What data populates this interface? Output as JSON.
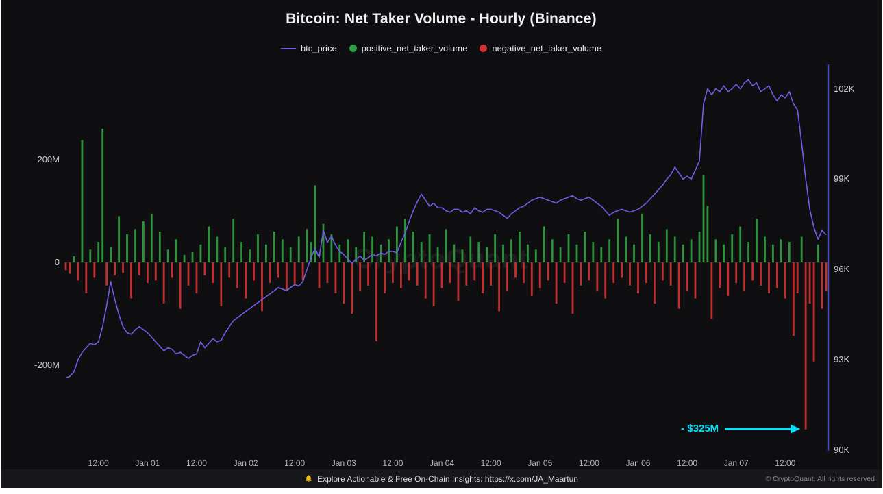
{
  "title": "Bitcoin: Net Taker Volume - Hourly (Binance)",
  "watermark": "CryptoQuant",
  "legend": [
    {
      "label": "btc_price",
      "marker": "line",
      "color": "#6e5fe6"
    },
    {
      "label": "positive_net_taker_volume",
      "marker": "dot",
      "color": "#2ea043"
    },
    {
      "label": "negative_net_taker_volume",
      "marker": "dot",
      "color": "#d63131"
    }
  ],
  "annotation": {
    "label": "- $325M",
    "color": "#00e5ff",
    "points_to_hour": 181,
    "value_m": -325
  },
  "footer": {
    "center": "Explore Actionable & Free On-Chain Insights: https://x.com/JA_Maartun",
    "right": "© CryptoQuant. All rights reserved",
    "bell_color": "#f0b90b"
  },
  "chart_data": {
    "type": "bar+line",
    "title": "Bitcoin: Net Taker Volume - Hourly (Binance)",
    "x_start": "Dec 31 04:00",
    "x_interval": "1 hour",
    "x_tick_labels": [
      "12:00",
      "Jan 01",
      "12:00",
      "Jan 02",
      "12:00",
      "Jan 03",
      "12:00",
      "Jan 04",
      "12:00",
      "Jan 05",
      "12:00",
      "Jan 06",
      "12:00",
      "Jan 07",
      "12:00"
    ],
    "x_tick_hours": [
      8,
      20,
      32,
      44,
      56,
      68,
      80,
      92,
      104,
      116,
      128,
      140,
      152,
      164,
      176
    ],
    "volume_axis": {
      "side": "left",
      "unit": "M USD",
      "ticks": [
        {
          "label": "200M",
          "value": 200
        },
        {
          "label": "0",
          "value": 0
        },
        {
          "label": "-200M",
          "value": -200
        }
      ]
    },
    "price_axis": {
      "side": "right",
      "unit": "K USD",
      "ticks": [
        {
          "label": "102K",
          "value": 102
        },
        {
          "label": "99K",
          "value": 99
        },
        {
          "label": "96K",
          "value": 96
        },
        {
          "label": "93K",
          "value": 93
        },
        {
          "label": "90K",
          "value": 90
        }
      ]
    },
    "colors": {
      "price_line": "#6e5fe6",
      "positive": "#2b9438",
      "negative": "#c22f2f",
      "right_axis_line": "#4d4dc0",
      "zero_line": "#26262c"
    },
    "series": {
      "net_taker_volume_m": [
        -15,
        -22,
        12,
        -35,
        238,
        -60,
        25,
        -30,
        40,
        260,
        -45,
        30,
        -25,
        90,
        -20,
        55,
        -70,
        65,
        -25,
        80,
        -40,
        95,
        -35,
        60,
        -80,
        25,
        -30,
        45,
        -90,
        15,
        -45,
        20,
        -60,
        35,
        -25,
        70,
        -40,
        50,
        -85,
        30,
        -30,
        85,
        -50,
        40,
        -70,
        25,
        -35,
        55,
        -95,
        35,
        -40,
        60,
        -30,
        45,
        -55,
        30,
        -45,
        50,
        -35,
        65,
        40,
        150,
        -50,
        75,
        -40,
        55,
        -60,
        35,
        -80,
        45,
        -100,
        30,
        -55,
        60,
        -45,
        50,
        -153,
        35,
        -60,
        45,
        -40,
        70,
        -50,
        85,
        -35,
        60,
        -45,
        40,
        -70,
        55,
        -85,
        30,
        -50,
        65,
        -40,
        35,
        -75,
        25,
        -45,
        50,
        -35,
        40,
        -60,
        30,
        -45,
        55,
        -95,
        35,
        -55,
        45,
        -30,
        60,
        -40,
        35,
        -65,
        25,
        -50,
        70,
        -35,
        45,
        -80,
        30,
        -40,
        55,
        -100,
        35,
        -45,
        60,
        -35,
        40,
        -55,
        30,
        -70,
        45,
        -40,
        85,
        -30,
        50,
        -45,
        35,
        -60,
        95,
        -40,
        55,
        -80,
        40,
        -35,
        65,
        -45,
        50,
        -90,
        35,
        -55,
        45,
        -70,
        60,
        170,
        110,
        -110,
        45,
        -50,
        35,
        -65,
        55,
        -40,
        70,
        -55,
        40,
        -35,
        85,
        -45,
        50,
        -60,
        35,
        -50,
        45,
        -70,
        40,
        -143,
        -60,
        50,
        -325,
        -80,
        -193,
        35,
        -90,
        -55
      ],
      "btc_price_k": [
        92.4,
        92.45,
        92.6,
        93.0,
        93.25,
        93.4,
        93.55,
        93.5,
        93.6,
        94.1,
        94.8,
        95.6,
        95.0,
        94.5,
        94.1,
        93.9,
        93.85,
        94.0,
        94.1,
        94.0,
        93.9,
        93.75,
        93.6,
        93.45,
        93.3,
        93.4,
        93.35,
        93.2,
        93.25,
        93.15,
        93.05,
        93.15,
        93.2,
        93.6,
        93.4,
        93.55,
        93.7,
        93.6,
        93.65,
        93.9,
        94.1,
        94.3,
        94.4,
        94.5,
        94.6,
        94.7,
        94.8,
        94.9,
        95.0,
        95.1,
        95.2,
        95.3,
        95.4,
        95.35,
        95.3,
        95.4,
        95.5,
        95.45,
        95.6,
        96.0,
        96.4,
        96.7,
        96.4,
        97.3,
        96.9,
        97.1,
        96.8,
        96.6,
        96.5,
        96.35,
        96.2,
        96.35,
        96.45,
        96.3,
        96.4,
        96.5,
        96.45,
        96.55,
        96.5,
        96.6,
        96.6,
        96.55,
        96.9,
        97.2,
        97.6,
        97.95,
        98.25,
        98.5,
        98.3,
        98.1,
        98.2,
        98.05,
        98.05,
        97.95,
        97.9,
        98.0,
        98.0,
        97.9,
        97.95,
        97.85,
        98.05,
        97.95,
        97.9,
        98.0,
        98.0,
        97.95,
        97.9,
        97.8,
        97.7,
        97.85,
        97.95,
        98.05,
        98.1,
        98.2,
        98.3,
        98.35,
        98.4,
        98.35,
        98.3,
        98.25,
        98.2,
        98.3,
        98.35,
        98.4,
        98.45,
        98.35,
        98.3,
        98.35,
        98.4,
        98.3,
        98.2,
        98.1,
        97.95,
        97.8,
        97.9,
        97.95,
        98.0,
        97.95,
        97.9,
        97.95,
        98.0,
        98.1,
        98.2,
        98.35,
        98.5,
        98.65,
        98.8,
        99.0,
        99.15,
        99.4,
        99.2,
        99.0,
        99.1,
        99.0,
        99.3,
        99.6,
        101.5,
        102.0,
        101.8,
        102.0,
        101.9,
        102.1,
        101.9,
        102.0,
        102.15,
        102.0,
        102.2,
        102.3,
        102.1,
        102.2,
        101.9,
        102.0,
        102.1,
        101.8,
        101.6,
        101.8,
        101.7,
        101.9,
        101.5,
        101.3,
        100.2,
        99.0,
        98.0,
        97.4,
        97.0,
        97.3,
        97.15
      ]
    }
  }
}
